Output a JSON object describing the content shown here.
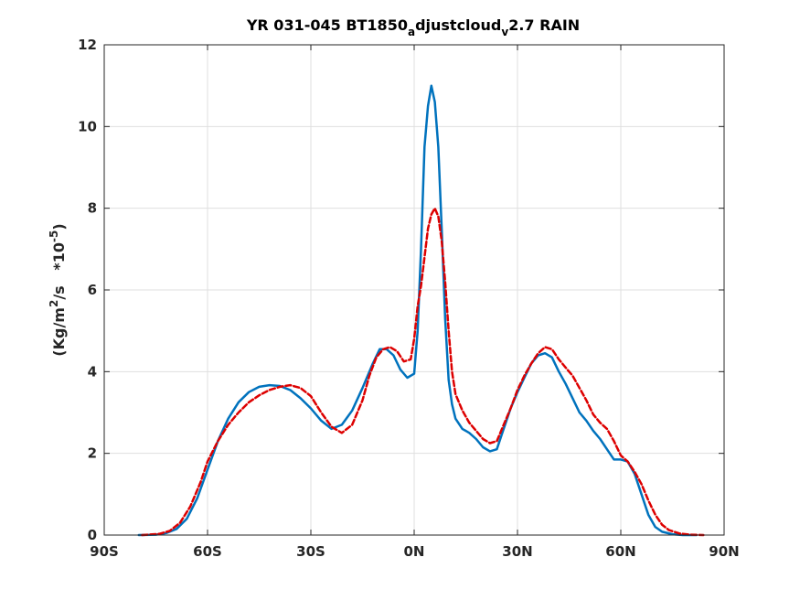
{
  "chart_data": {
    "type": "line",
    "title": "YR 031-045 BT1850",
    "title_sub1": "a",
    "title_mid": "djustcloud",
    "title_sub2": "v",
    "title_end": "2.7 RAIN",
    "ylabel_pre": "(Kg/m",
    "ylabel_sup1": "2",
    "ylabel_mid": "/s   *10",
    "ylabel_sup2": "-5",
    "ylabel_post": ")",
    "xlim": [
      -90,
      90
    ],
    "ylim": [
      0,
      12
    ],
    "grid": true,
    "x_ticks": [
      {
        "value": -90,
        "label": "90S"
      },
      {
        "value": -60,
        "label": "60S"
      },
      {
        "value": -30,
        "label": "30S"
      },
      {
        "value": 0,
        "label": "0N"
      },
      {
        "value": 30,
        "label": "30N"
      },
      {
        "value": 60,
        "label": "60N"
      },
      {
        "value": 90,
        "label": "90N"
      }
    ],
    "y_ticks": [
      {
        "value": 0,
        "label": "0"
      },
      {
        "value": 2,
        "label": "2"
      },
      {
        "value": 4,
        "label": "4"
      },
      {
        "value": 6,
        "label": "6"
      },
      {
        "value": 8,
        "label": "8"
      },
      {
        "value": 10,
        "label": "10"
      },
      {
        "value": 12,
        "label": "12"
      }
    ],
    "series": [
      {
        "color": "#0072bd",
        "style": "solid",
        "x": [
          -80,
          -75,
          -72,
          -69,
          -66,
          -63,
          -60,
          -57,
          -54,
          -51,
          -48,
          -45,
          -42,
          -39,
          -36,
          -33,
          -30,
          -27,
          -24,
          -21,
          -18,
          -15,
          -12,
          -10,
          -8,
          -6,
          -4,
          -2,
          0,
          1,
          2,
          3,
          4,
          5,
          6,
          7,
          8,
          9,
          10,
          11,
          12,
          14,
          16,
          18,
          20,
          22,
          24,
          26,
          28,
          30,
          32,
          34,
          36,
          38,
          40,
          42,
          44,
          46,
          48,
          50,
          52,
          54,
          56,
          58,
          60,
          62,
          64,
          66,
          68,
          70,
          72,
          75,
          78,
          82
        ],
        "values": [
          0,
          0.01,
          0.05,
          0.15,
          0.4,
          0.9,
          1.6,
          2.3,
          2.85,
          3.25,
          3.5,
          3.63,
          3.67,
          3.65,
          3.55,
          3.35,
          3.1,
          2.8,
          2.6,
          2.7,
          3.05,
          3.6,
          4.2,
          4.55,
          4.55,
          4.4,
          4.05,
          3.85,
          3.95,
          5.0,
          7.0,
          9.5,
          10.5,
          11.0,
          10.6,
          9.5,
          7.5,
          5.3,
          3.8,
          3.2,
          2.85,
          2.6,
          2.5,
          2.35,
          2.15,
          2.05,
          2.1,
          2.6,
          3.1,
          3.5,
          3.85,
          4.2,
          4.4,
          4.45,
          4.35,
          4.0,
          3.7,
          3.35,
          3.0,
          2.8,
          2.55,
          2.35,
          2.1,
          1.85,
          1.85,
          1.8,
          1.5,
          1.0,
          0.5,
          0.2,
          0.08,
          0.02,
          0,
          0
        ]
      },
      {
        "color": "#dd0000",
        "style": "dashed",
        "x": [
          -79,
          -74,
          -71,
          -68,
          -65,
          -62,
          -60,
          -57,
          -54,
          -51,
          -48,
          -45,
          -42,
          -39,
          -36,
          -33,
          -30,
          -27,
          -24,
          -21,
          -18,
          -15,
          -13,
          -11,
          -9,
          -7,
          -5,
          -3,
          -1,
          0,
          1,
          2,
          3,
          4,
          5,
          6,
          7,
          8,
          9,
          10,
          11,
          12,
          14,
          16,
          18,
          20,
          22,
          24,
          26,
          28,
          30,
          32,
          34,
          36,
          38,
          40,
          42,
          44,
          46,
          48,
          50,
          52,
          54,
          56,
          58,
          60,
          62,
          64,
          66,
          68,
          70,
          72,
          74,
          77,
          80,
          84
        ],
        "values": [
          0,
          0.03,
          0.1,
          0.3,
          0.7,
          1.3,
          1.8,
          2.3,
          2.7,
          3.0,
          3.25,
          3.42,
          3.55,
          3.63,
          3.67,
          3.6,
          3.4,
          3.0,
          2.65,
          2.5,
          2.7,
          3.3,
          3.9,
          4.35,
          4.55,
          4.6,
          4.5,
          4.25,
          4.3,
          4.8,
          5.6,
          6.1,
          6.8,
          7.5,
          7.85,
          8.0,
          7.8,
          7.2,
          6.2,
          5.0,
          4.0,
          3.45,
          3.05,
          2.75,
          2.55,
          2.35,
          2.25,
          2.3,
          2.7,
          3.1,
          3.55,
          3.9,
          4.2,
          4.45,
          4.6,
          4.55,
          4.3,
          4.1,
          3.9,
          3.6,
          3.3,
          2.95,
          2.75,
          2.6,
          2.3,
          1.95,
          1.8,
          1.55,
          1.25,
          0.85,
          0.5,
          0.25,
          0.12,
          0.04,
          0.01,
          0
        ]
      }
    ]
  }
}
